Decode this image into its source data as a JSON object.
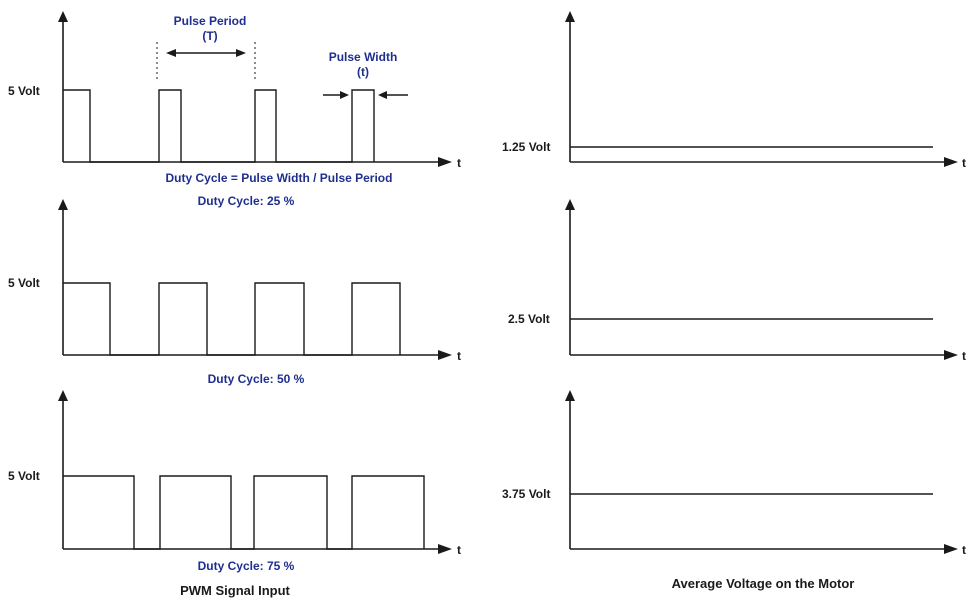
{
  "annotations": {
    "pulse_period_line1": "Pulse Period",
    "pulse_period_line2": "(T)",
    "pulse_width_line1": "Pulse Width",
    "pulse_width_line2": "(t)",
    "formula": "Duty Cycle = Pulse Width / Pulse Period"
  },
  "time_axis_label": "t",
  "pwm_panels": [
    {
      "level_label": "5 Volt",
      "duty_label": "Duty Cycle: 25 %",
      "duty_cycle": 0.25
    },
    {
      "level_label": "5 Volt",
      "duty_label": "Duty Cycle: 50 %",
      "duty_cycle": 0.5
    },
    {
      "level_label": "5 Volt",
      "duty_label": "Duty Cycle: 75 %",
      "duty_cycle": 0.75
    }
  ],
  "average_panels": [
    {
      "level_label": "1.25 Volt",
      "average_volts": 1.25
    },
    {
      "level_label": "2.5 Volt",
      "average_volts": 2.5
    },
    {
      "level_label": "3.75 Volt",
      "average_volts": 3.75
    }
  ],
  "captions": {
    "left": "PWM Signal Input",
    "right": "Average Voltage on the Motor"
  },
  "colors": {
    "annotation": "#1f2f8f",
    "line": "#1a1a1a"
  }
}
